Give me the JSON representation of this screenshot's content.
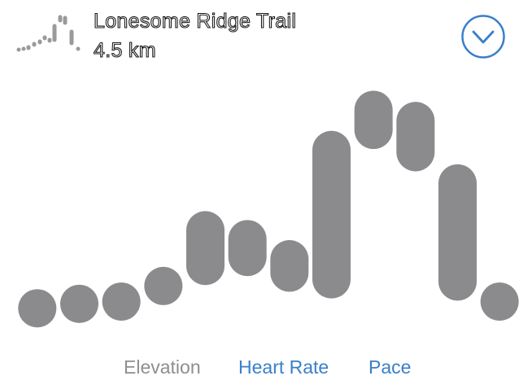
{
  "header": {
    "title": "Lonesome Ridge Trail",
    "distance": "4.5 km",
    "trail_icon": "elevation-sparkline-icon",
    "dropdown_icon": "chevron-down-circle-icon"
  },
  "colors": {
    "accent": "#3a7fc9",
    "inactive_tab": "#8e8e93",
    "bar": "#8b8b8e"
  },
  "tabs": [
    {
      "label": "Elevation",
      "active": false
    },
    {
      "label": "Heart Rate",
      "active": true
    },
    {
      "label": "Pace",
      "active": true
    }
  ],
  "chart_data": {
    "type": "range-bar",
    "title": "",
    "xlabel": "",
    "ylabel": "",
    "ylim": [
      0,
      100
    ],
    "values": [
      {
        "low": 7,
        "high": 7
      },
      {
        "low": 9,
        "high": 9
      },
      {
        "low": 10,
        "high": 10
      },
      {
        "low": 17,
        "high": 17
      },
      {
        "low": 26,
        "high": 42
      },
      {
        "low": 30,
        "high": 38
      },
      {
        "low": 23,
        "high": 29
      },
      {
        "low": 20,
        "high": 78
      },
      {
        "low": 87,
        "high": 96
      },
      {
        "low": 77,
        "high": 91
      },
      {
        "low": 19,
        "high": 63
      },
      {
        "low": 10,
        "high": 10
      }
    ]
  }
}
